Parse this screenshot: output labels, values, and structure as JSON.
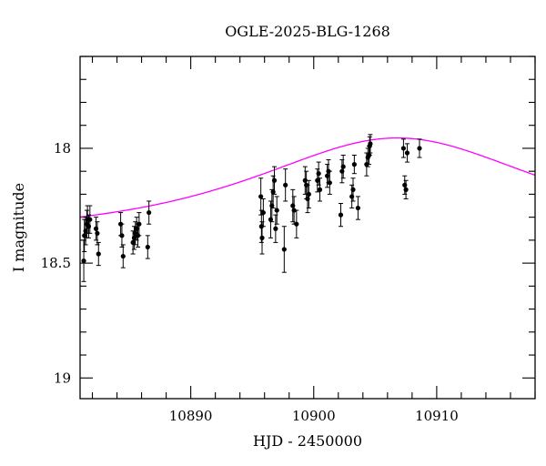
{
  "chart_data": {
    "type": "scatter",
    "title": "OGLE-2025-BLG-1268",
    "xlabel": "HJD - 2450000",
    "ylabel": "I magnitude",
    "xlim": [
      10881,
      10918
    ],
    "ylim": [
      19.09,
      17.6
    ],
    "y_inverted": true,
    "x_ticks": [
      10890,
      10900,
      10910
    ],
    "y_ticks": [
      18,
      18.5,
      19
    ],
    "y_tick_labels": [
      "18",
      "18.5",
      "19"
    ],
    "grid": false,
    "colors": {
      "points": "#000000",
      "model": "#ff00ff",
      "frame": "#000000"
    },
    "series": [
      {
        "kind": "points-with-errorbars",
        "x": [
          10881.3,
          10881.35,
          10881.45,
          10881.55,
          10881.6,
          10881.7,
          10881.8,
          10882.3,
          10882.4,
          10882.5,
          10884.3,
          10884.4,
          10884.5,
          10885.3,
          10885.4,
          10885.5,
          10885.6,
          10885.7,
          10885.8,
          10886.5,
          10886.6,
          10895.7,
          10895.75,
          10895.8,
          10895.9,
          10896.5,
          10896.6,
          10896.7,
          10896.8,
          10896.9,
          10897.0,
          10897.6,
          10897.7,
          10898.3,
          10898.4,
          10898.6,
          10899.3,
          10899.4,
          10899.5,
          10899.6,
          10900.3,
          10900.4,
          10900.5,
          10901.1,
          10901.2,
          10901.3,
          10902.2,
          10902.3,
          10902.4,
          10903.1,
          10903.2,
          10903.3,
          10903.6,
          10904.3,
          10904.4,
          10904.5,
          10904.55,
          10904.6,
          10907.3,
          10907.4,
          10907.5,
          10907.6,
          10908.6
        ],
        "y": [
          18.49,
          18.38,
          18.36,
          18.33,
          18.31,
          18.34,
          18.31,
          18.35,
          18.37,
          18.46,
          18.33,
          18.38,
          18.47,
          18.41,
          18.39,
          18.37,
          18.35,
          18.38,
          18.33,
          18.43,
          18.28,
          18.21,
          18.34,
          18.39,
          18.28,
          18.31,
          18.25,
          18.19,
          18.14,
          18.35,
          18.27,
          18.44,
          18.16,
          18.25,
          18.27,
          18.33,
          18.14,
          18.16,
          18.22,
          18.2,
          18.14,
          18.11,
          18.18,
          18.12,
          18.1,
          18.15,
          18.29,
          18.1,
          18.08,
          18.21,
          18.18,
          18.07,
          18.26,
          18.07,
          18.04,
          18.03,
          17.99,
          17.98,
          18.0,
          18.16,
          18.18,
          18.02,
          18.0
        ],
        "err": [
          0.09,
          0.07,
          0.06,
          0.06,
          0.06,
          0.05,
          0.06,
          0.05,
          0.05,
          0.05,
          0.05,
          0.05,
          0.05,
          0.05,
          0.05,
          0.05,
          0.05,
          0.05,
          0.05,
          0.05,
          0.05,
          0.08,
          0.07,
          0.07,
          0.06,
          0.08,
          0.07,
          0.07,
          0.06,
          0.06,
          0.06,
          0.1,
          0.07,
          0.07,
          0.06,
          0.06,
          0.06,
          0.06,
          0.06,
          0.06,
          0.05,
          0.05,
          0.05,
          0.05,
          0.05,
          0.05,
          0.05,
          0.05,
          0.05,
          0.05,
          0.05,
          0.04,
          0.05,
          0.05,
          0.04,
          0.04,
          0.04,
          0.04,
          0.04,
          0.04,
          0.04,
          0.04,
          0.04
        ]
      },
      {
        "kind": "model-curve",
        "model": "paczynski",
        "t0": 10906.8,
        "tE": 17,
        "u0": 0.75,
        "baseline_mag": 18.38,
        "peak_mag": 17.955
      }
    ]
  }
}
